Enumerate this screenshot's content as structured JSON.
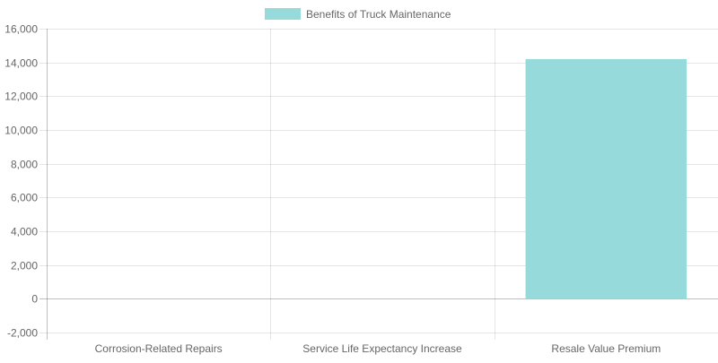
{
  "chart_data": {
    "type": "bar",
    "title": "",
    "xlabel": "",
    "ylabel": "",
    "categories": [
      "Corrosion-Related Repairs",
      "Service Life Expectancy Increase",
      "Resale Value Premium"
    ],
    "series": [
      {
        "name": "Benefits of Truck Maintenance",
        "values": [
          0,
          0,
          14200
        ],
        "color": "#96dadb"
      }
    ],
    "ylim": [
      -2000,
      16000
    ],
    "yticks": [
      16000,
      14000,
      12000,
      10000,
      8000,
      6000,
      4000,
      2000,
      0,
      -2000
    ],
    "ytick_labels": [
      "16,000",
      "14,000",
      "12,000",
      "10,000",
      "8,000",
      "6,000",
      "4,000",
      "2,000",
      "0",
      "-2,000"
    ],
    "grid": true,
    "legend_position": "top"
  }
}
